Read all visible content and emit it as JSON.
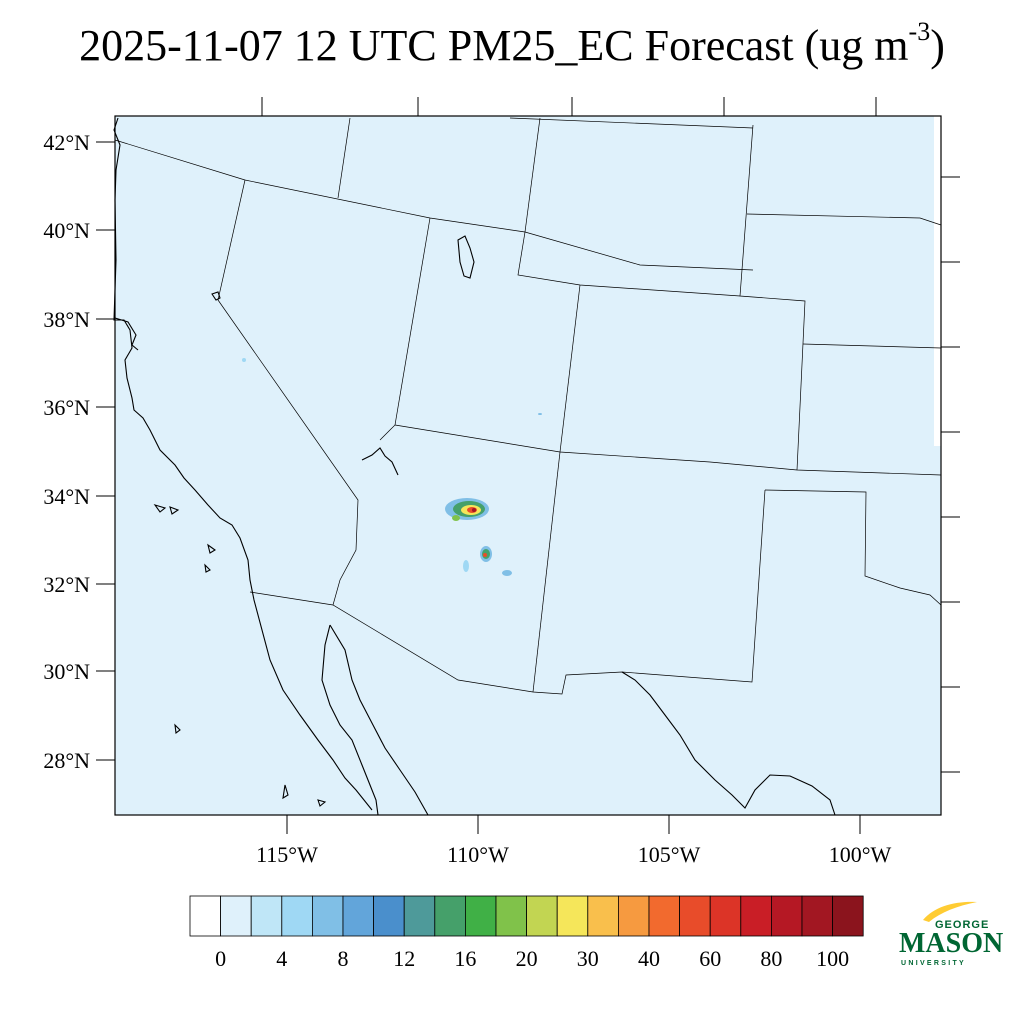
{
  "title": {
    "main": "2025-11-07 12 UTC PM25_EC Forecast (ug m",
    "superscript": "-3",
    "close": ")"
  },
  "map": {
    "lat_labels": [
      "42°N",
      "40°N",
      "38°N",
      "36°N",
      "34°N",
      "32°N",
      "30°N",
      "28°N"
    ],
    "lon_labels": [
      "115°W",
      "110°W",
      "105°W",
      "100°W"
    ],
    "background_color": "#dff1fb"
  },
  "colorbar": {
    "labels": [
      "0",
      "4",
      "8",
      "12",
      "16",
      "20",
      "30",
      "40",
      "60",
      "80",
      "100"
    ],
    "colors": [
      "#ffffff",
      "#dff1fb",
      "#bfe6f7",
      "#9fd8f4",
      "#80bfe6",
      "#62a5da",
      "#4a8fcc",
      "#4e9a9a",
      "#45a06a",
      "#40b046",
      "#80c24a",
      "#c2d552",
      "#f5e65a",
      "#f9bf4c",
      "#f69a40",
      "#f26a2e",
      "#e84c2a",
      "#dc3427",
      "#c91e26",
      "#b51824",
      "#a21722",
      "#8b141d"
    ]
  },
  "logo": {
    "line1": "GEORGE",
    "line2": "MASON",
    "line3": "UNIVERSITY",
    "green": "#006633",
    "gold": "#ffcc33"
  }
}
